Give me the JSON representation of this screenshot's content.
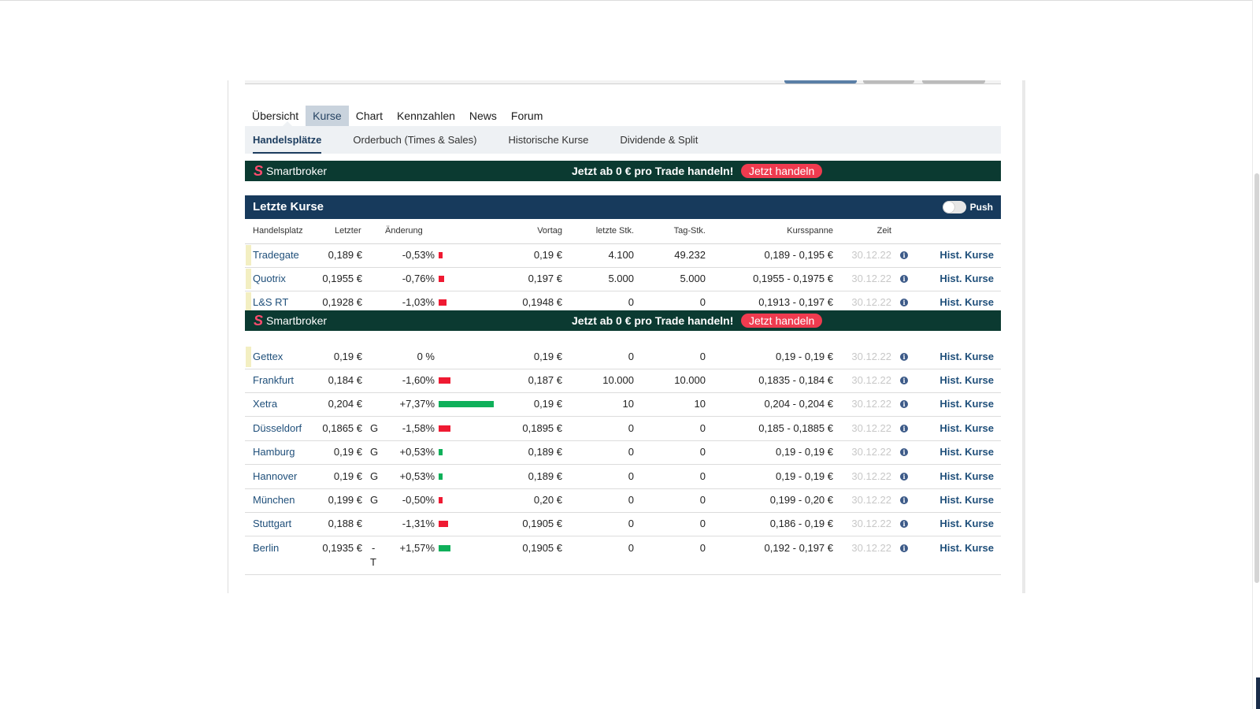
{
  "tabs": [
    {
      "label": "Übersicht"
    },
    {
      "label": "Kurse"
    },
    {
      "label": "Chart"
    },
    {
      "label": "Kennzahlen"
    },
    {
      "label": "News"
    },
    {
      "label": "Forum"
    }
  ],
  "active_tab": "Kurse",
  "subtabs": [
    {
      "label": "Handelsplätze"
    },
    {
      "label": "Orderbuch (Times & Sales)"
    },
    {
      "label": "Historische Kurse"
    },
    {
      "label": "Dividende & Split"
    }
  ],
  "active_subtab": "Handelsplätze",
  "banner": {
    "brand": "Smartbroker",
    "promo": "Jetzt ab 0 € pro Trade handeln!",
    "cta": "Jetzt handeln",
    "colors": {
      "background": "#0b3a31",
      "cta": "#ef3b4f"
    }
  },
  "panel": {
    "title": "Letzte Kurse",
    "push_label": "Push",
    "push_enabled": false
  },
  "columns": {
    "handelsplatz": "Handelsplatz",
    "letzter": "Letzter",
    "aenderung": "Änderung",
    "vortag": "Vortag",
    "letzte_stk": "letzte Stk.",
    "tag_stk": "Tag-Stk.",
    "kursspanne": "Kursspanne",
    "zeit": "Zeit"
  },
  "rows": [
    {
      "venue": "Tradegate",
      "last": "0,189 €",
      "flag": "",
      "change": "-0,53%",
      "change_value": -0.53,
      "prev": "0,19 €",
      "last_qty": "4.100",
      "day_qty": "49.232",
      "range": "0,189 - 0,195 €",
      "time": "30.12.22",
      "hist": "Hist. Kurse"
    },
    {
      "venue": "Quotrix",
      "last": "0,1955 €",
      "flag": "",
      "change": "-0,76%",
      "change_value": -0.76,
      "prev": "0,197 €",
      "last_qty": "5.000",
      "day_qty": "5.000",
      "range": "0,1955 - 0,1975 €",
      "time": "30.12.22",
      "hist": "Hist. Kurse"
    },
    {
      "venue": "L&S RT",
      "last": "0,1928 €",
      "flag": "",
      "change": "-1,03%",
      "change_value": -1.03,
      "prev": "0,1948 €",
      "last_qty": "0",
      "day_qty": "0",
      "range": "0,1913 - 0,197 €",
      "time": "30.12.22",
      "hist": "Hist. Kurse"
    },
    {
      "venue": "Gettex",
      "last": "0,19 €",
      "flag": "",
      "change": "0 %",
      "change_value": 0,
      "prev": "0,19 €",
      "last_qty": "0",
      "day_qty": "0",
      "range": "0,19 - 0,19 €",
      "time": "30.12.22",
      "hist": "Hist. Kurse"
    },
    {
      "venue": "Frankfurt",
      "last": "0,184 €",
      "flag": "",
      "change": "-1,60%",
      "change_value": -1.6,
      "prev": "0,187 €",
      "last_qty": "10.000",
      "day_qty": "10.000",
      "range": "0,1835 - 0,184 €",
      "time": "30.12.22",
      "hist": "Hist. Kurse"
    },
    {
      "venue": "Xetra",
      "last": "0,204 €",
      "flag": "",
      "change": "+7,37%",
      "change_value": 7.37,
      "prev": "0,19 €",
      "last_qty": "10",
      "day_qty": "10",
      "range": "0,204 - 0,204 €",
      "time": "30.12.22",
      "hist": "Hist. Kurse"
    },
    {
      "venue": "Düsseldorf",
      "last": "0,1865 €",
      "flag": "G",
      "change": "-1,58%",
      "change_value": -1.58,
      "prev": "0,1895 €",
      "last_qty": "0",
      "day_qty": "0",
      "range": "0,185 - 0,1885 €",
      "time": "30.12.22",
      "hist": "Hist. Kurse"
    },
    {
      "venue": "Hamburg",
      "last": "0,19 €",
      "flag": "G",
      "change": "+0,53%",
      "change_value": 0.53,
      "prev": "0,189 €",
      "last_qty": "0",
      "day_qty": "0",
      "range": "0,19 - 0,19 €",
      "time": "30.12.22",
      "hist": "Hist. Kurse"
    },
    {
      "venue": "Hannover",
      "last": "0,19 €",
      "flag": "G",
      "change": "+0,53%",
      "change_value": 0.53,
      "prev": "0,189 €",
      "last_qty": "0",
      "day_qty": "0",
      "range": "0,19 - 0,19 €",
      "time": "30.12.22",
      "hist": "Hist. Kurse"
    },
    {
      "venue": "München",
      "last": "0,199 €",
      "flag": "G",
      "change": "-0,50%",
      "change_value": -0.5,
      "prev": "0,20 €",
      "last_qty": "0",
      "day_qty": "0",
      "range": "0,199 - 0,20 €",
      "time": "30.12.22",
      "hist": "Hist. Kurse"
    },
    {
      "venue": "Stuttgart",
      "last": "0,188 €",
      "flag": "",
      "change": "-1,31%",
      "change_value": -1.31,
      "prev": "0,1905 €",
      "last_qty": "0",
      "day_qty": "0",
      "range": "0,186 - 0,19 €",
      "time": "30.12.22",
      "hist": "Hist. Kurse"
    },
    {
      "venue": "Berlin",
      "last": "0,1935 €",
      "flag": "-T",
      "change": "+1,57%",
      "change_value": 1.57,
      "prev": "0,1905 €",
      "last_qty": "0",
      "day_qty": "0",
      "range": "0,192 - 0,197 €",
      "time": "30.12.22",
      "hist": "Hist. Kurse"
    }
  ],
  "colors": {
    "positive": "#0fb05a",
    "negative": "#ef1a32",
    "panel_header": "#173a5c",
    "link": "#1f4f7a"
  }
}
